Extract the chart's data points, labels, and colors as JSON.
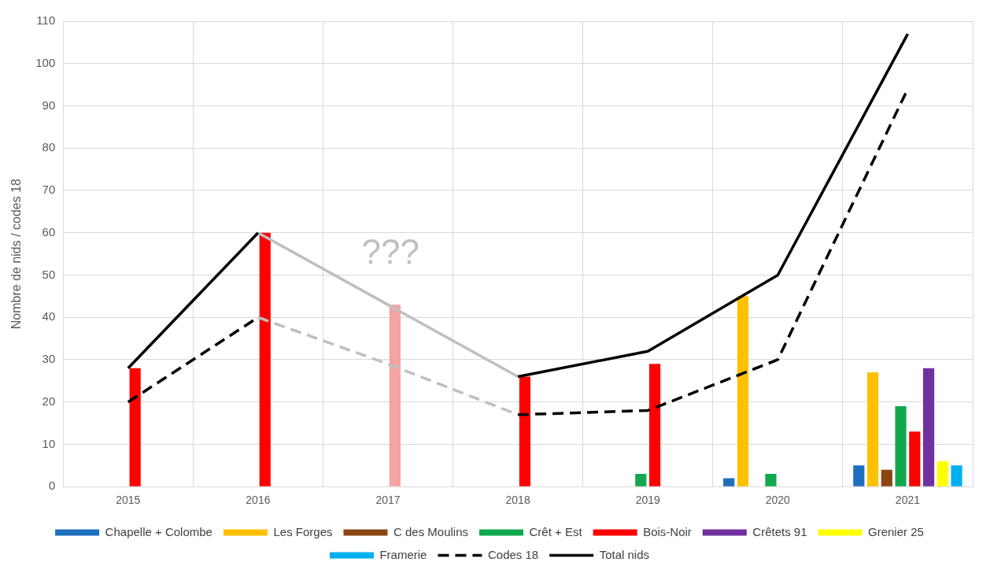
{
  "chart_data": {
    "type": "bar",
    "ylabel": "Nombre de nids / codes 18",
    "categories": [
      "2015",
      "2016",
      "2017",
      "2018",
      "2019",
      "2020",
      "2021"
    ],
    "series": [
      {
        "name": "Chapelle + Colombe",
        "color": "#1f6fbf",
        "values": [
          null,
          null,
          null,
          null,
          null,
          2,
          5
        ]
      },
      {
        "name": "Les Forges",
        "color": "#ffc000",
        "values": [
          null,
          null,
          null,
          null,
          null,
          45,
          27
        ]
      },
      {
        "name": "C des Moulins",
        "color": "#8b4513",
        "values": [
          null,
          null,
          null,
          null,
          null,
          null,
          4
        ]
      },
      {
        "name": "Crêt + Est",
        "color": "#12a84e",
        "values": [
          null,
          null,
          null,
          null,
          3,
          3,
          19
        ]
      },
      {
        "name": "Bois-Noir",
        "color": "#ff0000",
        "colors": [
          "#ff0000",
          "#ff0000",
          "#f4a3a3",
          "#ff0000",
          "#ff0000",
          "#ff0000",
          "#ff0000"
        ],
        "values": [
          28,
          60,
          43,
          26,
          29,
          null,
          13
        ]
      },
      {
        "name": "Crêtets 91",
        "color": "#7030a0",
        "values": [
          null,
          null,
          null,
          null,
          null,
          null,
          28
        ]
      },
      {
        "name": "Grenier 25",
        "color": "#ffff00",
        "values": [
          null,
          null,
          null,
          null,
          null,
          null,
          6
        ]
      },
      {
        "name": "Framerie",
        "color": "#00b0f0",
        "values": [
          null,
          null,
          null,
          null,
          null,
          null,
          5
        ]
      },
      {
        "name": "Codes 18",
        "type": "line",
        "color": "#000000",
        "line_style": "dashed",
        "values": [
          20,
          40,
          null,
          17,
          18,
          30,
          94
        ]
      },
      {
        "name": "Total nids",
        "type": "line",
        "color": "#000000",
        "line_style": "solid",
        "values": [
          28,
          60,
          null,
          26,
          32,
          50,
          107
        ]
      },
      {
        "type": "line",
        "color": "#bfbfbf",
        "line_style": "dashed",
        "values": [
          null,
          40,
          29,
          17,
          null,
          null,
          null
        ]
      },
      {
        "type": "line",
        "color": "#bfbfbf",
        "line_style": "solid",
        "values": [
          null,
          60,
          43,
          26,
          null,
          null,
          null
        ]
      }
    ],
    "annotations": [
      "???"
    ],
    "ylim": [
      0,
      110
    ],
    "yticks": [
      0,
      10,
      20,
      30,
      40,
      50,
      60,
      70,
      80,
      90,
      100,
      110
    ],
    "grid": true,
    "legend": "bottom",
    "marker": "none"
  }
}
